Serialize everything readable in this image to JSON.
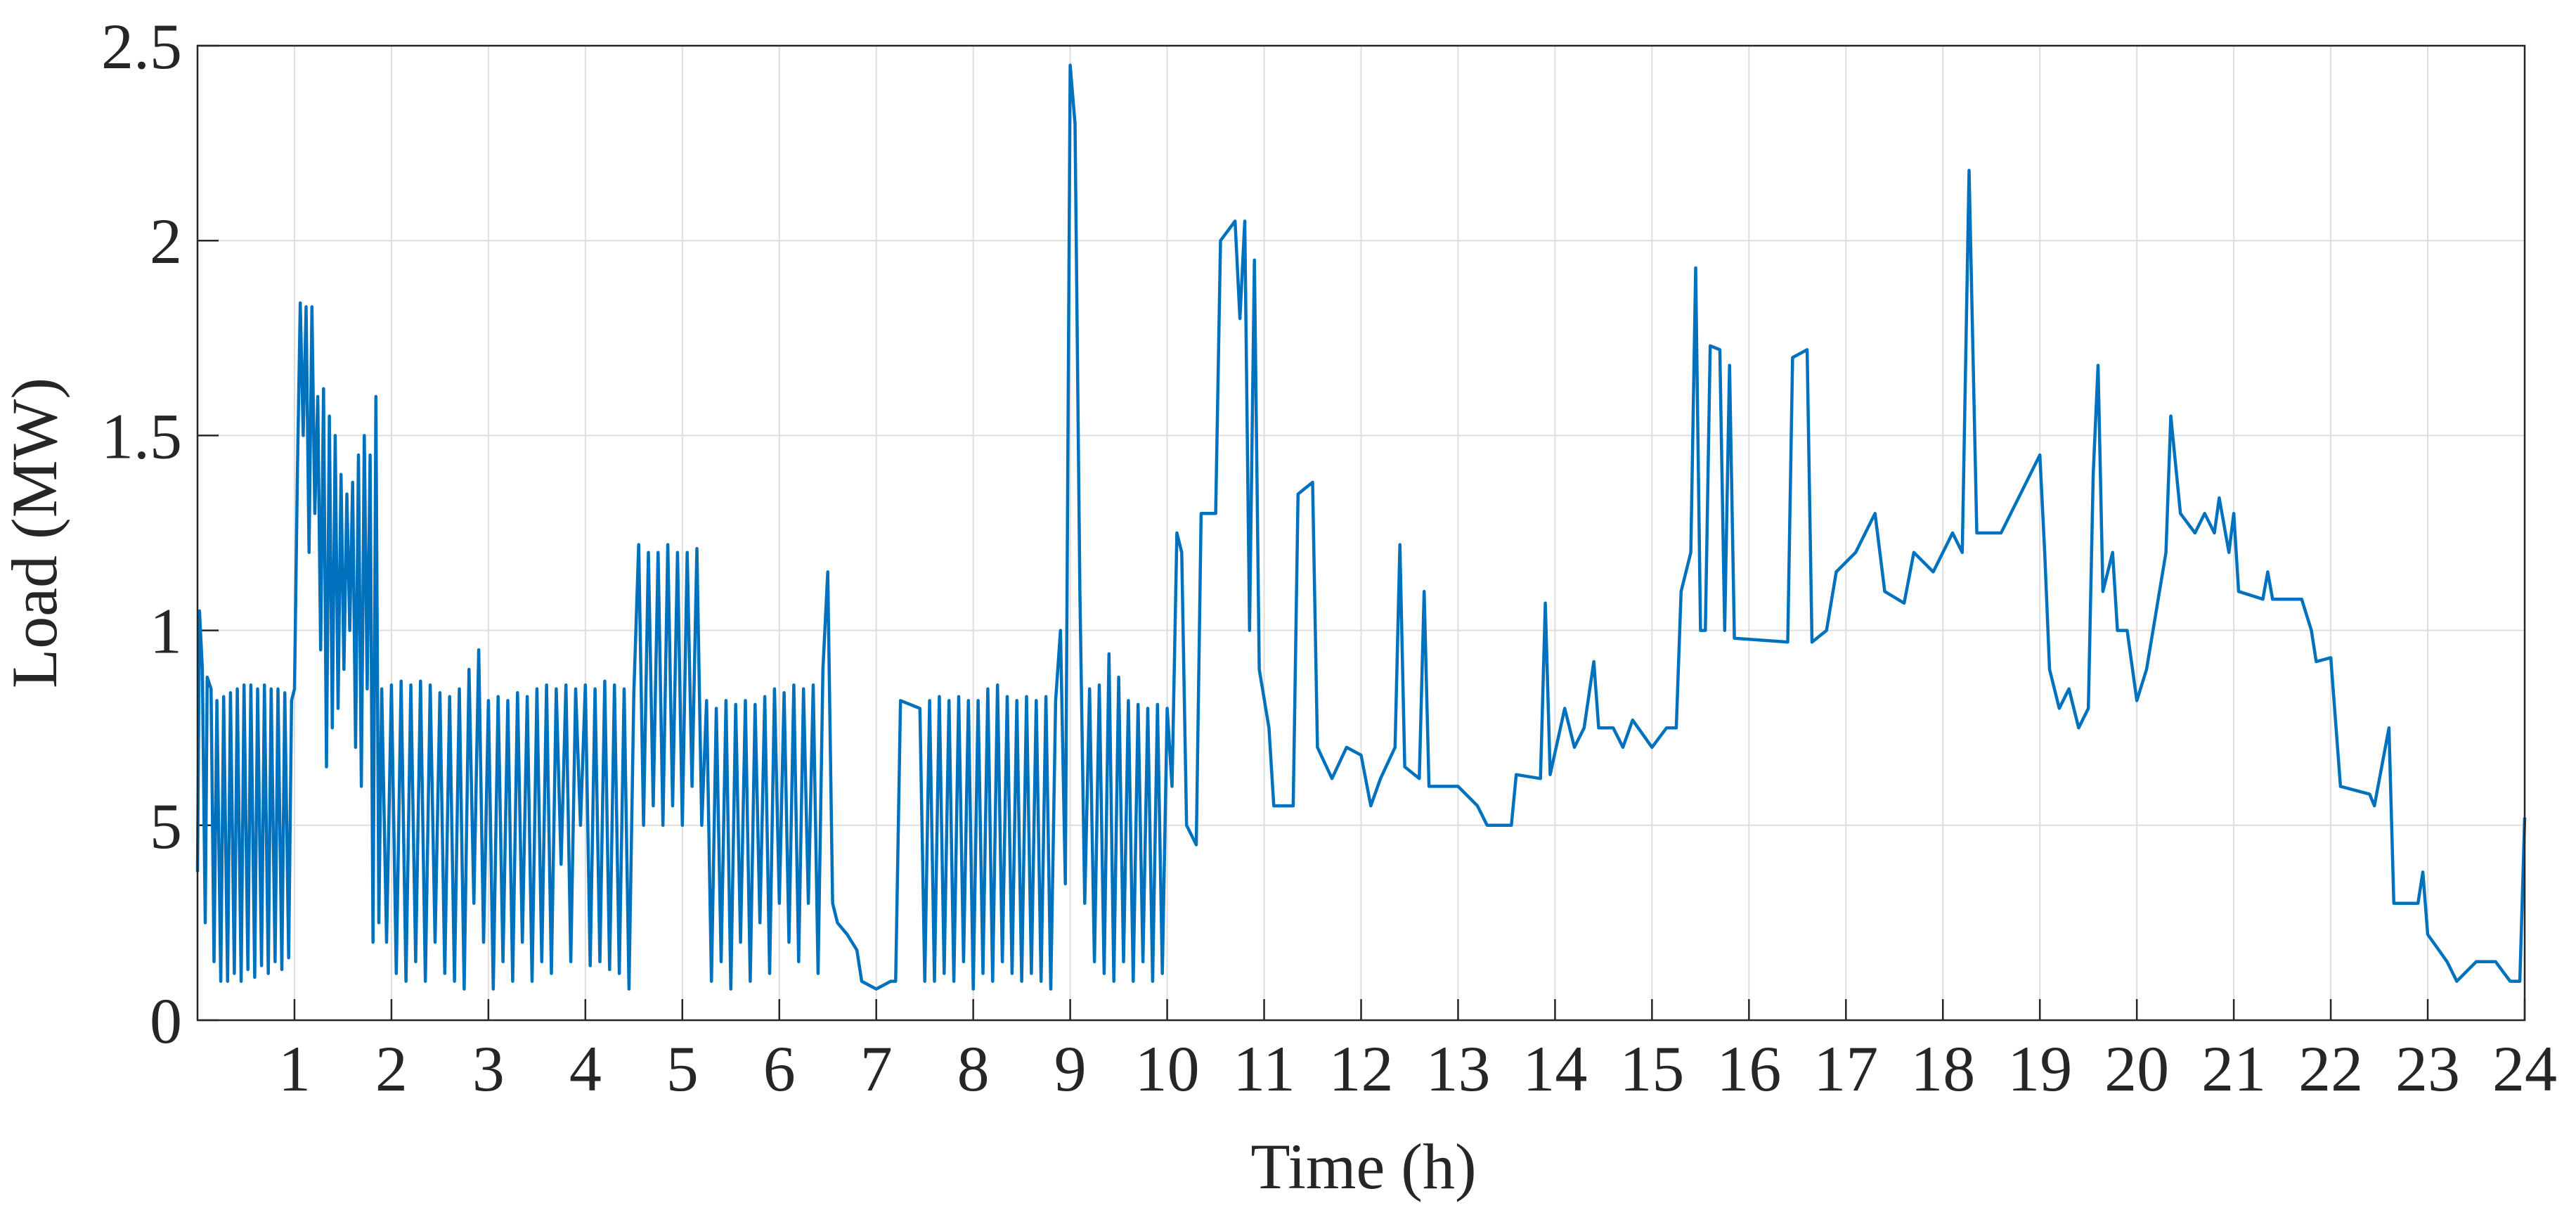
{
  "chart_data": {
    "type": "line",
    "xlabel": "Time (h)",
    "ylabel": "Load (MW)",
    "xlim": [
      0,
      24
    ],
    "ylim": [
      0,
      2.5
    ],
    "xticks": [
      1,
      2,
      3,
      4,
      5,
      6,
      7,
      8,
      9,
      10,
      11,
      12,
      13,
      14,
      15,
      16,
      17,
      18,
      19,
      20,
      21,
      22,
      23,
      24
    ],
    "yticks": [
      0,
      {
        "value": 0.5,
        "label": "5"
      },
      1,
      1.5,
      2,
      2.5
    ],
    "grid": true,
    "series": [
      {
        "color": "#0072bd",
        "x": [
          0,
          0.02,
          0.05,
          0.08,
          0.1,
          0.14,
          0.17,
          0.2,
          0.24,
          0.27,
          0.31,
          0.34,
          0.38,
          0.41,
          0.45,
          0.48,
          0.52,
          0.55,
          0.59,
          0.62,
          0.66,
          0.69,
          0.73,
          0.76,
          0.8,
          0.83,
          0.87,
          0.9,
          0.94,
          0.97,
          1.0,
          1.03,
          1.06,
          1.09,
          1.12,
          1.15,
          1.18,
          1.21,
          1.24,
          1.27,
          1.3,
          1.33,
          1.36,
          1.39,
          1.42,
          1.45,
          1.48,
          1.51,
          1.54,
          1.57,
          1.6,
          1.63,
          1.66,
          1.69,
          1.72,
          1.75,
          1.78,
          1.81,
          1.84,
          1.87,
          1.9,
          1.95,
          2.0,
          2.05,
          2.1,
          2.15,
          2.2,
          2.25,
          2.3,
          2.35,
          2.4,
          2.45,
          2.5,
          2.55,
          2.6,
          2.65,
          2.7,
          2.75,
          2.8,
          2.85,
          2.9,
          2.95,
          3.0,
          3.05,
          3.1,
          3.15,
          3.2,
          3.25,
          3.3,
          3.35,
          3.4,
          3.45,
          3.5,
          3.55,
          3.6,
          3.65,
          3.7,
          3.75,
          3.8,
          3.85,
          3.9,
          3.95,
          4.0,
          4.05,
          4.1,
          4.15,
          4.2,
          4.25,
          4.3,
          4.35,
          4.4,
          4.45,
          4.5,
          4.55,
          4.6,
          4.65,
          4.7,
          4.75,
          4.8,
          4.85,
          4.9,
          4.95,
          5.0,
          5.05,
          5.1,
          5.15,
          5.2,
          5.25,
          5.3,
          5.35,
          5.4,
          5.45,
          5.5,
          5.55,
          5.6,
          5.65,
          5.7,
          5.75,
          5.8,
          5.85,
          5.9,
          5.95,
          6.0,
          6.05,
          6.1,
          6.15,
          6.2,
          6.25,
          6.3,
          6.35,
          6.4,
          6.45,
          6.5,
          6.55,
          6.6,
          6.7,
          6.8,
          6.85,
          7.0,
          7.15,
          7.2,
          7.25,
          7.45,
          7.5,
          7.55,
          7.6,
          7.65,
          7.7,
          7.75,
          7.8,
          7.85,
          7.9,
          7.95,
          8.0,
          8.05,
          8.1,
          8.15,
          8.2,
          8.25,
          8.3,
          8.35,
          8.4,
          8.45,
          8.5,
          8.55,
          8.6,
          8.65,
          8.7,
          8.75,
          8.8,
          8.85,
          8.9,
          8.95,
          9.0,
          9.05,
          9.1,
          9.15,
          9.2,
          9.25,
          9.3,
          9.35,
          9.4,
          9.45,
          9.5,
          9.55,
          9.6,
          9.65,
          9.7,
          9.75,
          9.8,
          9.85,
          9.9,
          9.95,
          10.0,
          10.05,
          10.1,
          10.15,
          10.2,
          10.3,
          10.35,
          10.5,
          10.55,
          10.7,
          10.75,
          10.8,
          10.85,
          10.9,
          10.95,
          11.05,
          11.1,
          11.3,
          11.35,
          11.5,
          11.55,
          11.7,
          11.85,
          12.0,
          12.1,
          12.2,
          12.35,
          12.4,
          12.45,
          12.6,
          12.65,
          12.7,
          13.0,
          13.2,
          13.3,
          13.55,
          13.6,
          13.85,
          13.9,
          13.95,
          14.1,
          14.2,
          14.3,
          14.4,
          14.45,
          14.6,
          14.7,
          14.8,
          15.0,
          15.15,
          15.25,
          15.3,
          15.4,
          15.45,
          15.5,
          15.55,
          15.6,
          15.7,
          15.75,
          15.8,
          15.85,
          16.4,
          16.45,
          16.6,
          16.65,
          16.8,
          16.9,
          17.1,
          17.3,
          17.4,
          17.6,
          17.7,
          17.9,
          18.1,
          18.2,
          18.27,
          18.35,
          18.6,
          18.8,
          19.0,
          19.05,
          19.1,
          19.2,
          19.3,
          19.4,
          19.5,
          19.55,
          19.6,
          19.65,
          19.75,
          19.8,
          19.9,
          20.0,
          20.1,
          20.2,
          20.3,
          20.35,
          20.45,
          20.6,
          20.7,
          20.8,
          20.85,
          20.95,
          21.0,
          21.05,
          21.3,
          21.35,
          21.4,
          21.7,
          21.8,
          21.85,
          22.0,
          22.1,
          22.4,
          22.45,
          22.6,
          22.65,
          22.9,
          22.95,
          23.0,
          23.2,
          23.3,
          23.5,
          23.7,
          23.85,
          23.95,
          24.0
        ],
        "values": [
          0.38,
          1.05,
          0.9,
          0.25,
          0.88,
          0.85,
          0.15,
          0.82,
          0.1,
          0.83,
          0.1,
          0.84,
          0.12,
          0.85,
          0.1,
          0.86,
          0.13,
          0.86,
          0.11,
          0.85,
          0.14,
          0.86,
          0.12,
          0.85,
          0.15,
          0.85,
          0.13,
          0.84,
          0.16,
          0.82,
          0.85,
          1.4,
          1.84,
          1.5,
          1.83,
          1.2,
          1.83,
          1.3,
          1.6,
          0.95,
          1.62,
          0.65,
          1.55,
          0.75,
          1.5,
          0.8,
          1.4,
          0.9,
          1.35,
          1.0,
          1.38,
          0.7,
          1.45,
          0.6,
          1.5,
          0.85,
          1.45,
          0.2,
          1.6,
          0.25,
          0.85,
          0.2,
          0.86,
          0.12,
          0.87,
          0.1,
          0.86,
          0.15,
          0.87,
          0.1,
          0.86,
          0.2,
          0.84,
          0.12,
          0.83,
          0.1,
          0.85,
          0.08,
          0.9,
          0.3,
          0.95,
          0.2,
          0.82,
          0.08,
          0.83,
          0.15,
          0.82,
          0.1,
          0.84,
          0.2,
          0.83,
          0.1,
          0.85,
          0.15,
          0.86,
          0.12,
          0.85,
          0.4,
          0.86,
          0.15,
          0.85,
          0.5,
          0.86,
          0.14,
          0.85,
          0.15,
          0.87,
          0.13,
          0.86,
          0.12,
          0.85,
          0.08,
          0.84,
          1.22,
          0.5,
          1.2,
          0.55,
          1.2,
          0.5,
          1.22,
          0.55,
          1.2,
          0.5,
          1.2,
          0.6,
          1.21,
          0.5,
          0.82,
          0.1,
          0.8,
          0.15,
          0.82,
          0.08,
          0.81,
          0.2,
          0.82,
          0.1,
          0.81,
          0.25,
          0.83,
          0.12,
          0.85,
          0.3,
          0.84,
          0.2,
          0.86,
          0.15,
          0.85,
          0.3,
          0.86,
          0.12,
          0.9,
          1.15,
          0.3,
          0.25,
          0.22,
          0.18,
          0.1,
          0.08,
          0.1,
          0.1,
          0.82,
          0.8,
          0.1,
          0.82,
          0.1,
          0.83,
          0.12,
          0.82,
          0.1,
          0.83,
          0.15,
          0.82,
          0.08,
          0.82,
          0.12,
          0.85,
          0.1,
          0.86,
          0.15,
          0.83,
          0.12,
          0.82,
          0.1,
          0.83,
          0.12,
          0.82,
          0.1,
          0.83,
          0.08,
          0.82,
          1.0,
          0.35,
          2.45,
          2.3,
          1.1,
          0.3,
          0.85,
          0.15,
          0.86,
          0.12,
          0.94,
          0.1,
          0.88,
          0.15,
          0.82,
          0.1,
          0.81,
          0.15,
          0.8,
          0.1,
          0.81,
          0.12,
          0.8,
          0.6,
          1.25,
          1.2,
          0.5,
          0.45,
          1.3,
          1.3,
          2.0,
          2.05,
          1.8,
          2.05,
          1.0,
          1.95,
          0.9,
          0.75,
          0.55,
          0.55,
          1.35,
          1.38,
          0.7,
          0.62,
          0.7,
          0.68,
          0.55,
          0.62,
          0.7,
          1.22,
          0.65,
          0.62,
          1.1,
          0.6,
          0.6,
          0.55,
          0.5,
          0.5,
          0.63,
          0.62,
          1.07,
          0.63,
          0.8,
          0.7,
          0.75,
          0.92,
          0.75,
          0.75,
          0.7,
          0.77,
          0.7,
          0.75,
          0.75,
          1.1,
          1.2,
          1.93,
          1.0,
          1.0,
          1.73,
          1.72,
          1.0,
          1.68,
          0.98,
          0.97,
          1.7,
          1.72,
          0.97,
          1.0,
          1.15,
          1.2,
          1.3,
          1.1,
          1.07,
          1.2,
          1.15,
          1.25,
          1.2,
          2.18,
          1.25,
          1.25,
          1.35,
          1.45,
          1.2,
          0.9,
          0.8,
          0.85,
          0.75,
          0.8,
          1.4,
          1.68,
          1.1,
          1.2,
          1.0,
          1.0,
          0.82,
          0.9,
          1.05,
          1.2,
          1.55,
          1.3,
          1.25,
          1.3,
          1.25,
          1.34,
          1.2,
          1.3,
          1.1,
          1.08,
          1.15,
          1.08,
          1.08,
          1.0,
          0.92,
          0.93,
          0.6,
          0.58,
          0.55,
          0.75,
          0.3,
          0.3,
          0.38,
          0.22,
          0.15,
          0.1,
          0.15,
          0.15,
          0.1,
          0.1,
          0.52
        ]
      }
    ]
  }
}
